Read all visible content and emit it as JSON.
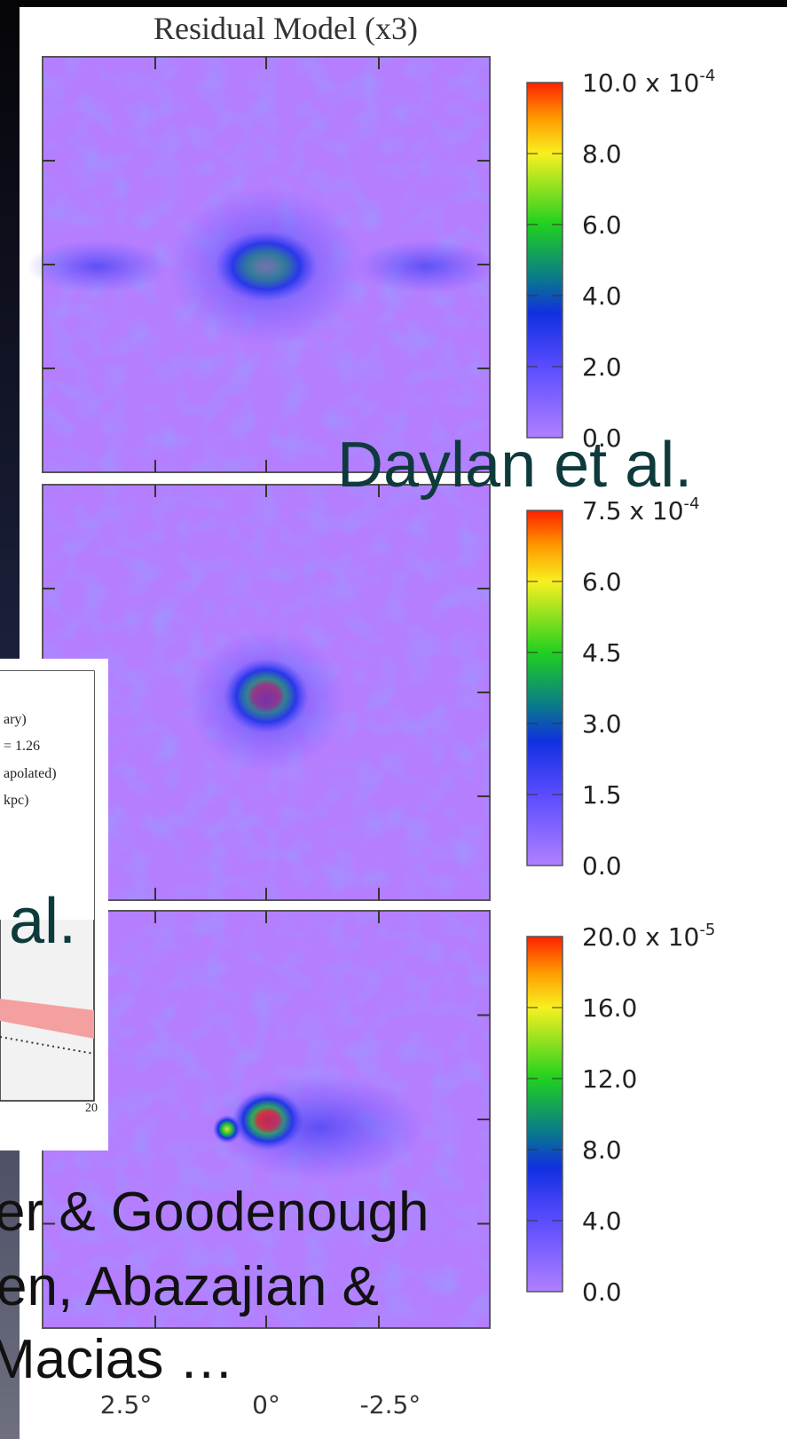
{
  "figure": {
    "title": "Residual Model (x3)",
    "panels": [
      {
        "colorbar": [
          {
            "text": "10.0 x 10",
            "sup": "-4"
          },
          {
            "text": "8.0"
          },
          {
            "text": "6.0"
          },
          {
            "text": "4.0"
          },
          {
            "text": "2.0"
          },
          {
            "text": "0.0"
          }
        ]
      },
      {
        "colorbar": [
          {
            "text": "7.5 x 10",
            "sup": "-4"
          },
          {
            "text": "6.0"
          },
          {
            "text": "4.5"
          },
          {
            "text": "3.0"
          },
          {
            "text": "1.5"
          },
          {
            "text": "0.0"
          }
        ]
      },
      {
        "colorbar": [
          {
            "text": "20.0 x 10",
            "sup": "-5"
          },
          {
            "text": "16.0"
          },
          {
            "text": "12.0"
          },
          {
            "text": "8.0"
          },
          {
            "text": "4.0"
          },
          {
            "text": "0.0"
          }
        ]
      }
    ],
    "x_labels": [
      "2.5°",
      "0°",
      "-2.5°"
    ]
  },
  "inset": {
    "legend": [
      "ary)",
      "= 1.26",
      "apolated)",
      "kpc)"
    ],
    "tick": "20"
  },
  "overlay": {
    "daylan": "Daylan et al.",
    "al": "al.",
    "lines": [
      "er & Goodenough",
      "en,  Abazajian &",
      "Macias …"
    ]
  }
}
